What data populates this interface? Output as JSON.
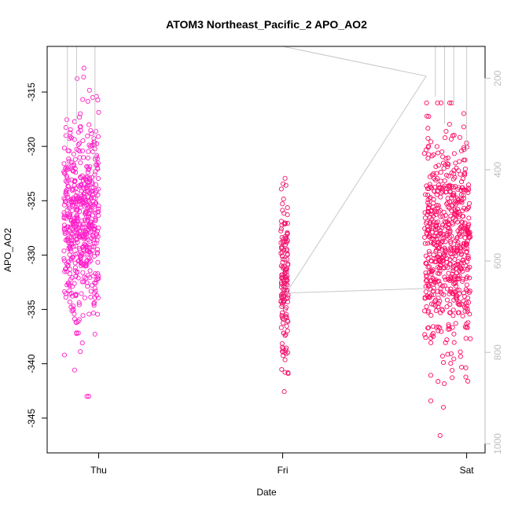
{
  "chart_data": {
    "type": "scatter",
    "title": "ATOM3 Northeast_Pacific_2 APO_AO2",
    "xlabel": "Date",
    "ylabel": "APO_AO2",
    "x_ticks": [
      "Thu",
      "Fri",
      "Sat"
    ],
    "y_ticks": [
      -315,
      -320,
      -325,
      -330,
      -335,
      -340,
      -345
    ],
    "y_ticks_right": [
      200,
      400,
      600,
      800,
      1000
    ],
    "xlim": [
      -0.28,
      2.1
    ],
    "ylim": [
      -348.2,
      -310.8
    ],
    "ylim_right": [
      1020,
      130
    ],
    "grid": false,
    "colors": {
      "points_thu": "#ff1ec8",
      "points_fri": "#f0146e",
      "points_sat": "#ff0a64",
      "altitude_line": "#c8c8c8",
      "axis": "#000000",
      "right_axis": "#bebebe"
    },
    "series": [
      {
        "type": "scatter",
        "clusters": [
          {
            "day": "Thu",
            "x_range": [
              -0.19,
              0.0
            ],
            "y_range": [
              -343.0,
              -312.2
            ],
            "mean": -326.5,
            "sd": 4.6,
            "n": 560
          },
          {
            "day": "Fri",
            "x_range": [
              0.99,
              1.03
            ],
            "y_range": [
              -343.6,
              -322.3
            ],
            "mean": -332.0,
            "sd": 4.2,
            "n": 150
          },
          {
            "day": "Sat",
            "x_range": [
              1.77,
              2.02
            ],
            "y_range": [
              -346.6,
              -316.0
            ],
            "mean": -329.0,
            "sd": 4.8,
            "n": 640
          }
        ]
      },
      {
        "type": "line",
        "axis": "right",
        "points": [
          {
            "x": -0.17,
            "alt": 130
          },
          {
            "x": 1.0,
            "alt": 130
          },
          {
            "x": 1.78,
            "alt": 195
          },
          {
            "x": 1.02,
            "alt": 670
          },
          {
            "x": 1.78,
            "alt": 660
          }
        ]
      }
    ]
  }
}
